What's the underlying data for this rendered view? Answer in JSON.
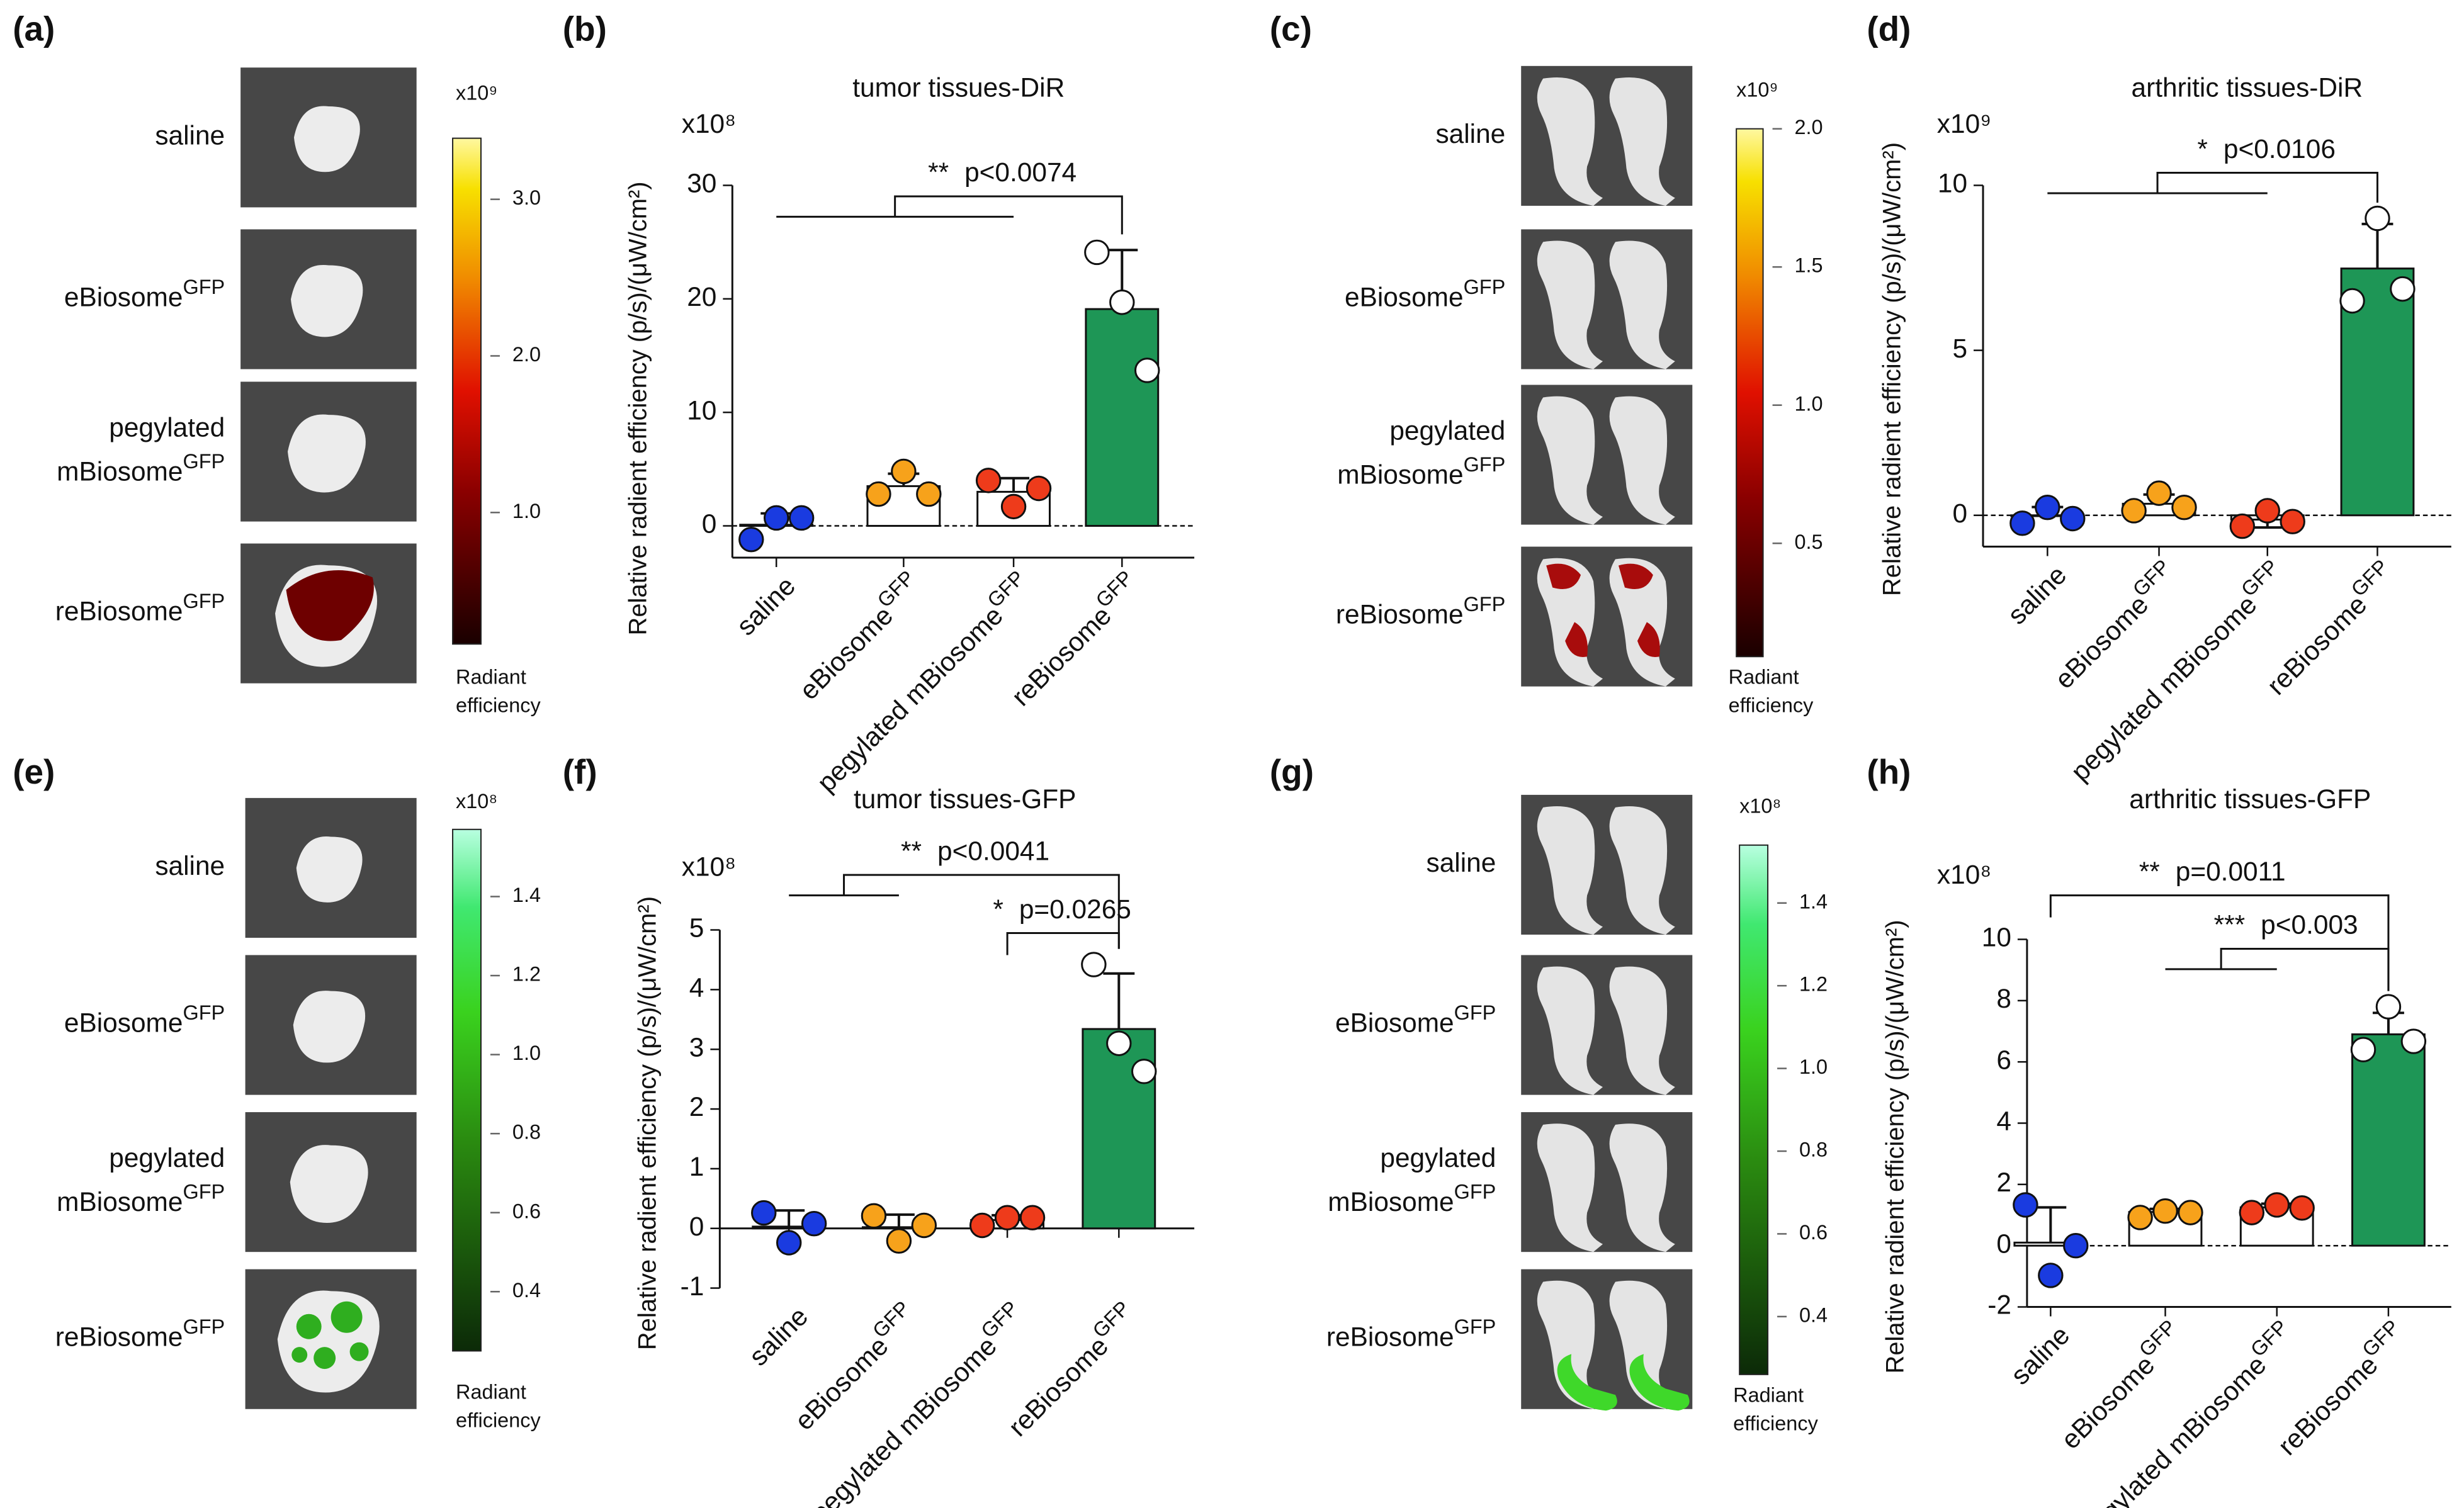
{
  "image_panels": [
    {
      "panel_label": "(a)",
      "rows": [
        {
          "lines": [
            "saline"
          ]
        },
        {
          "lines": [
            "eBiosome"
          ],
          "sup": "GFP"
        },
        {
          "lines": [
            "pegylated",
            "mBiosome"
          ],
          "sup": "GFP"
        },
        {
          "lines": [
            "reBiosome"
          ],
          "sup": "GFP"
        }
      ],
      "colorbar": {
        "multiplier": "x10⁹",
        "lim": [
          0.16,
          3.39
        ],
        "ticks": [
          {
            "value": 1,
            "label": "1.0"
          },
          {
            "value": 2,
            "label": "2.0"
          },
          {
            "value": 3,
            "label": "3.0"
          }
        ],
        "label_lines": [
          "Radiant",
          "efficiency"
        ]
      }
    },
    {
      "panel_label": "(c)",
      "rows": [
        {
          "lines": [
            "saline"
          ]
        },
        {
          "lines": [
            "eBiosome"
          ],
          "sup": "GFP"
        },
        {
          "lines": [
            "pegylated",
            "mBiosome"
          ],
          "sup": "GFP"
        },
        {
          "lines": [
            "reBiosome"
          ],
          "sup": "GFP"
        }
      ],
      "colorbar": {
        "multiplier": "x10⁹",
        "lim": [
          0.09,
          2.0
        ],
        "ticks": [
          0.5,
          {
            "value": 1,
            "label": "1.0"
          },
          1.5,
          {
            "value": 2,
            "label": "2.0"
          }
        ],
        "label_lines": [
          "Radiant",
          "efficiency"
        ]
      }
    },
    {
      "panel_label": "(e)",
      "rows": [
        {
          "lines": [
            "saline"
          ]
        },
        {
          "lines": [
            "eBiosome"
          ],
          "sup": "GFP"
        },
        {
          "lines": [
            "pegylated",
            "mBiosome"
          ],
          "sup": "GFP"
        },
        {
          "lines": [
            "reBiosome"
          ],
          "sup": "GFP"
        }
      ],
      "colorbar": {
        "multiplier": "x10⁸",
        "lim": [
          0.25,
          1.57
        ],
        "ticks": [
          0.4,
          0.6,
          0.8,
          {
            "value": 1,
            "label": "1.0"
          },
          1.2,
          1.4
        ],
        "label_lines": [
          "Radiant",
          "efficiency"
        ]
      }
    },
    {
      "panel_label": "(g)",
      "rows": [
        {
          "lines": [
            "saline"
          ]
        },
        {
          "lines": [
            "eBiosome"
          ],
          "sup": "GFP"
        },
        {
          "lines": [
            "pegylated",
            "mBiosome"
          ],
          "sup": "GFP"
        },
        {
          "lines": [
            "reBiosome"
          ],
          "sup": "GFP"
        }
      ],
      "colorbar": {
        "multiplier": "x10⁸",
        "lim": [
          0.26,
          1.54
        ],
        "ticks": [
          0.4,
          0.6,
          0.8,
          {
            "value": 1,
            "label": "1.0"
          },
          1.2,
          1.4
        ],
        "label_lines": [
          "Radiant",
          "efficiency"
        ]
      }
    }
  ],
  "chart_data": [
    {
      "type": "bar",
      "panel_label": "(b)",
      "title": "tumor tissues-DiR",
      "ylabel": "Relative  radient efficiency (p/s)/(μW/cm²)",
      "y_multiplier": "x10⁸",
      "categories": [
        "saline",
        "eBiosome",
        "pegylated mBiosome",
        "reBiosome"
      ],
      "category_superscripts": [
        null,
        "GFP",
        "GFP",
        "GFP"
      ],
      "values": [
        0.1,
        3.5,
        3.0,
        19.1
      ],
      "errors": [
        1.0,
        1.1,
        1.2,
        5.2
      ],
      "points": [
        [
          -1.2,
          0.7,
          0.7
        ],
        [
          2.8,
          4.8,
          2.8
        ],
        [
          4.0,
          1.7,
          3.3
        ],
        [
          24.1,
          19.7,
          13.7
        ]
      ],
      "bar_colors": [
        "#ffffff",
        "#ffffff",
        "#ffffff",
        "#1e9656"
      ],
      "point_colors": [
        "#1a3be0",
        "#f7a21b",
        "#ee3b1b",
        "#ffffff"
      ],
      "ylim": [
        -2.8,
        30
      ],
      "yticks": [
        0,
        10,
        20,
        30
      ],
      "zero_line": "dashed",
      "significance": [
        {
          "stars": "**",
          "label": "p<0.0074",
          "group": [
            0,
            1,
            2
          ],
          "target": 3
        }
      ]
    },
    {
      "type": "bar",
      "panel_label": "(d)",
      "title": "arthritic tissues-DiR",
      "ylabel": "Relative  radient efficiency (p/s)/(μW/cm²)",
      "y_multiplier": "x10⁹",
      "categories": [
        "saline",
        "eBiosome",
        "pegylated mBiosome",
        "reBiosome"
      ],
      "category_superscripts": [
        null,
        "GFP",
        "GFP",
        "GFP"
      ],
      "values": [
        0.0,
        0.35,
        -0.13,
        7.48
      ],
      "errors": [
        0.25,
        0.28,
        0.24,
        1.35
      ],
      "points": [
        [
          -0.24,
          0.24,
          -0.1
        ],
        [
          0.14,
          0.67,
          0.24
        ],
        [
          -0.33,
          0.14,
          -0.19
        ],
        [
          6.5,
          9.0,
          6.86
        ]
      ],
      "bar_colors": [
        "#ffffff",
        "#ffffff",
        "#ffffff",
        "#1e9656"
      ],
      "point_colors": [
        "#1a3be0",
        "#f7a21b",
        "#ee3b1b",
        "#ffffff"
      ],
      "ylim": [
        -0.95,
        10
      ],
      "yticks": [
        0,
        5,
        10
      ],
      "zero_line": "dashed",
      "significance": [
        {
          "stars": "*",
          "label": "p<0.0106",
          "group": [
            0,
            1,
            2
          ],
          "target": 3
        }
      ]
    },
    {
      "type": "bar",
      "panel_label": "(f)",
      "title": "tumor tissues-GFP",
      "ylabel": "Relative  radient efficiency (p/s)/(μW/cm²)",
      "y_multiplier": "x10⁸",
      "categories": [
        "saline",
        "eBiosome",
        "pegylated mBiosome",
        "reBiosome"
      ],
      "category_superscripts": [
        null,
        "GFP",
        "GFP",
        "GFP"
      ],
      "values": [
        0.03,
        0.02,
        0.14,
        3.34
      ],
      "errors": [
        0.27,
        0.21,
        0.08,
        0.93
      ],
      "points": [
        [
          0.26,
          -0.24,
          0.08
        ],
        [
          0.21,
          -0.21,
          0.05
        ],
        [
          0.05,
          0.18,
          0.18
        ],
        [
          4.42,
          3.1,
          2.63
        ]
      ],
      "bar_colors": [
        "#ffffff",
        "#ffffff",
        "#ffffff",
        "#1e9656"
      ],
      "point_colors": [
        "#1a3be0",
        "#f7a21b",
        "#ee3b1b",
        "#ffffff"
      ],
      "ylim": [
        -1,
        5
      ],
      "yticks": [
        -1,
        0,
        1,
        2,
        3,
        4,
        5
      ],
      "zero_line": "axis",
      "significance": [
        {
          "stars": "**",
          "label": "p<0.0041",
          "group": [
            0,
            1
          ],
          "target": 3
        },
        {
          "stars": "*",
          "label": "p=0.0265",
          "group": [
            2
          ],
          "target": 3
        }
      ]
    },
    {
      "type": "bar",
      "panel_label": "(h)",
      "title": "arthritic tissues-GFP",
      "ylabel": "Relative  radient efficiency (p/s)/(μW/cm²)",
      "y_multiplier": "x10⁸",
      "categories": [
        "saline",
        "eBiosome",
        "pegylated mBiosome",
        "reBiosome"
      ],
      "category_superscripts": [
        null,
        "GFP",
        "GFP",
        "GFP"
      ],
      "values": [
        0.1,
        1.1,
        1.25,
        6.9
      ],
      "errors": [
        1.15,
        0.1,
        0.12,
        0.7
      ],
      "points": [
        [
          1.33,
          -0.97,
          0.0
        ],
        [
          0.92,
          1.13,
          1.08
        ],
        [
          1.08,
          1.33,
          1.23
        ],
        [
          6.4,
          7.8,
          6.67
        ]
      ],
      "bar_colors": [
        "#ffffff",
        "#ffffff",
        "#ffffff",
        "#1e9656"
      ],
      "point_colors": [
        "#1a3be0",
        "#f7a21b",
        "#ee3b1b",
        "#ffffff"
      ],
      "ylim": [
        -2,
        10
      ],
      "yticks": [
        -2,
        0,
        2,
        4,
        6,
        8,
        10
      ],
      "zero_line": "dashed",
      "significance": [
        {
          "stars": "**",
          "label": "p=0.0011",
          "group": [
            0
          ],
          "target": 3
        },
        {
          "stars": "***",
          "label": "p<0.003",
          "group": [
            1,
            2
          ],
          "target": 3
        }
      ]
    }
  ]
}
